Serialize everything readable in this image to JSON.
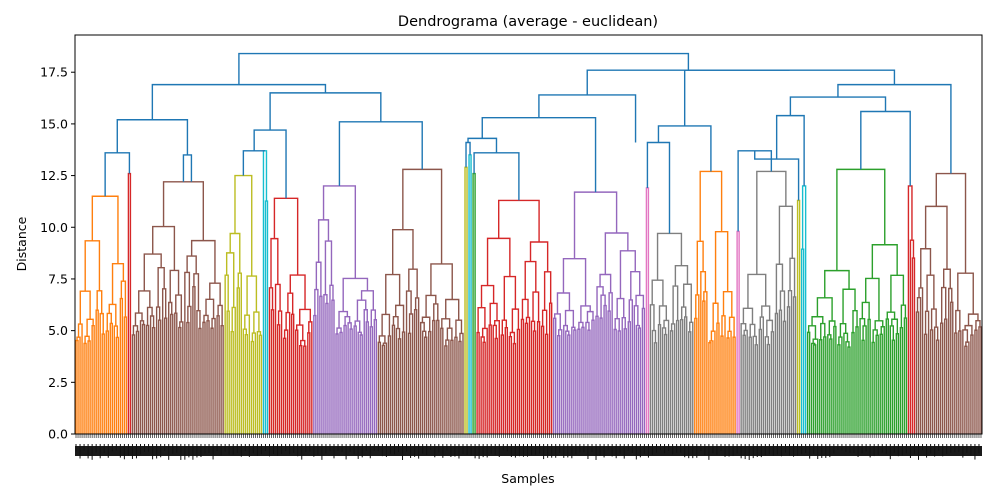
{
  "chart_data": {
    "type": "dendrogram",
    "title": "Dendrograma (average - euclidean)",
    "xlabel": "Samples",
    "ylabel": "Distance",
    "ylim": [
      0,
      19.3
    ],
    "yticks": [
      0.0,
      2.5,
      5.0,
      7.5,
      10.0,
      12.5,
      15.0,
      17.5
    ],
    "ytick_labels": [
      "0.0",
      "2.5",
      "5.0",
      "7.5",
      "10.0",
      "12.5",
      "15.0",
      "17.5"
    ],
    "n_leaves": 450,
    "link_color": "#1f77b4",
    "clusters": [
      {
        "color": "#ff7f0e",
        "leaves": 26,
        "root": 11.5,
        "base": 4.0
      },
      {
        "color": "#d62728",
        "leaves": 2,
        "root": 12.6,
        "base": 5.0
      },
      {
        "color": "#8c564b",
        "leaves": 46,
        "root": 12.2,
        "base": 4.5
      },
      {
        "color": "#bcbd22",
        "leaves": 19,
        "root": 12.5,
        "base": 4.0
      },
      {
        "color": "#17becf",
        "leaves": 3,
        "root": 13.7,
        "base": 5.5
      },
      {
        "color": "#d62728",
        "leaves": 22,
        "root": 11.4,
        "base": 4.0
      },
      {
        "color": "#9467bd",
        "leaves": 32,
        "root": 12.0,
        "base": 4.5
      },
      {
        "color": "#8c564b",
        "leaves": 43,
        "root": 12.8,
        "base": 4.0
      },
      {
        "color": "#bcbd22",
        "leaves": 2,
        "root": 12.9,
        "base": 5.0
      },
      {
        "color": "#17becf",
        "leaves": 2,
        "root": 13.5,
        "base": 5.0
      },
      {
        "color": "#2ca02c",
        "leaves": 2,
        "root": 12.6,
        "base": 5.0
      },
      {
        "color": "#d62728",
        "leaves": 38,
        "root": 11.3,
        "base": 4.0
      },
      {
        "color": "#9467bd",
        "leaves": 46,
        "root": 11.7,
        "base": 4.5
      },
      {
        "color": "#e377c2",
        "leaves": 2,
        "root": 11.9,
        "base": 5.5
      },
      {
        "color": "#7f7f7f",
        "leaves": 22,
        "root": 9.7,
        "base": 4.0
      },
      {
        "color": "#ff7f0e",
        "leaves": 21,
        "root": 12.7,
        "base": 4.0
      },
      {
        "color": "#e377c2",
        "leaves": 2,
        "root": 9.8,
        "base": 5.0
      },
      {
        "color": "#7f7f7f",
        "leaves": 28,
        "root": 12.7,
        "base": 4.0
      },
      {
        "color": "#bcbd22",
        "leaves": 2,
        "root": 11.3,
        "base": 5.0
      },
      {
        "color": "#17becf",
        "leaves": 3,
        "root": 12.0,
        "base": 5.0
      },
      {
        "color": "#2ca02c",
        "leaves": 50,
        "root": 12.8,
        "base": 4.0
      },
      {
        "color": "#d62728",
        "leaves": 4,
        "root": 12.0,
        "base": 5.0
      },
      {
        "color": "#8c564b",
        "leaves": 33,
        "root": 12.6,
        "base": 4.0
      }
    ],
    "merges": [
      [
        "c0",
        "c1",
        13.6
      ],
      [
        "c2",
        "c2b",
        13.5
      ],
      [
        "m0",
        "m1",
        15.2
      ],
      [
        "c3",
        "c4",
        13.7
      ],
      [
        "m3",
        "c5",
        14.7
      ],
      [
        "c6",
        "c7",
        15.1
      ],
      [
        "m4",
        "m5",
        16.5
      ],
      [
        "m2",
        "m6",
        16.9
      ],
      [
        "c8",
        "c9",
        14.1
      ],
      [
        "c10",
        "c11",
        13.6
      ],
      [
        "m8",
        "m9",
        14.3
      ],
      [
        "m10",
        "c12",
        15.3
      ],
      [
        "m11",
        "m11b",
        16.4
      ],
      [
        "c13",
        "c14",
        14.1
      ],
      [
        "m13",
        "c15",
        14.9
      ],
      [
        "c16",
        "c17",
        13.7
      ],
      [
        "m15",
        "c18",
        13.3
      ],
      [
        "m16",
        "c19",
        15.4
      ],
      [
        "c20",
        "c21",
        15.6
      ],
      [
        "m17",
        "m18",
        16.3
      ],
      [
        "m19",
        "c22",
        16.9
      ],
      [
        "m14",
        "m20",
        17.6
      ],
      [
        "m12",
        "m21",
        17.6
      ],
      [
        "m7",
        "m22",
        18.4
      ]
    ]
  }
}
